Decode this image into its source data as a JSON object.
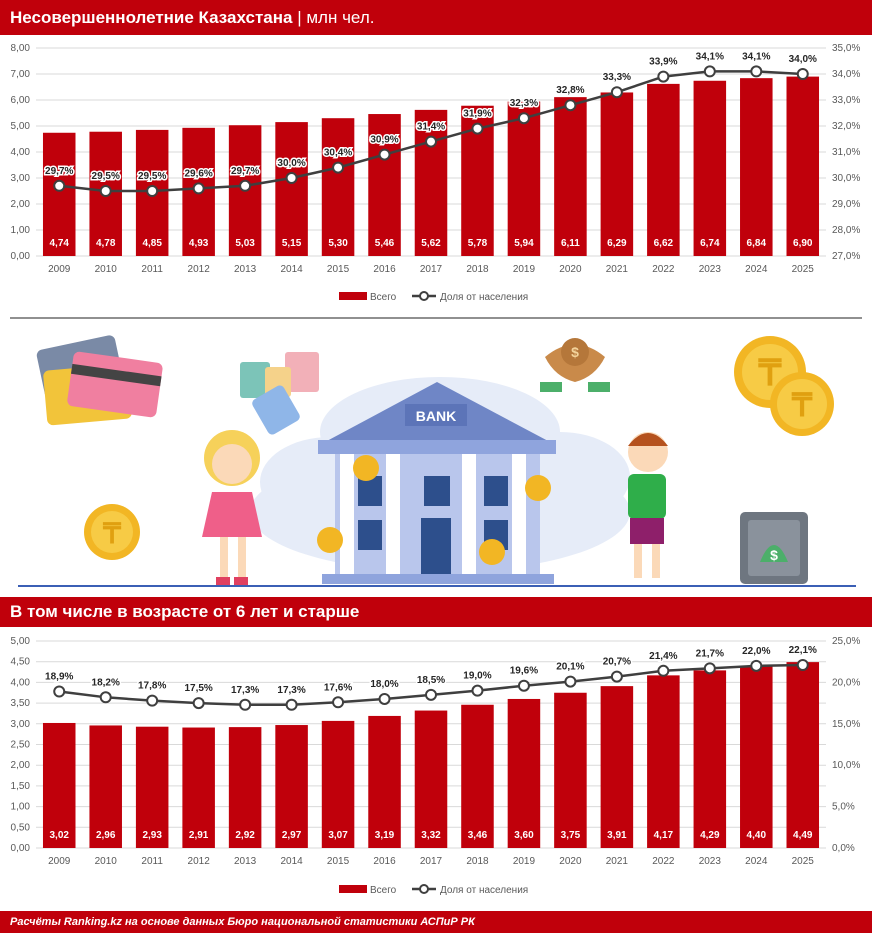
{
  "header": {
    "title_bold": "Несовершеннолетние Казахстана",
    "title_sep": " | ",
    "title_unit": "млн чел."
  },
  "subheader": {
    "title": "В том числе в возрасте от 6 лет и старше"
  },
  "footer": {
    "source": "Расчёты Ranking.kz на основе данных Бюро национальной статистики АСПиР РК"
  },
  "illustration": {
    "bank_label": "BANK"
  },
  "colors": {
    "bar": "#c0000b",
    "line": "#3f3f3f",
    "banner": "#c0000b"
  },
  "chart_data": [
    {
      "type": "bar",
      "categories": [
        "2009",
        "2010",
        "2011",
        "2012",
        "2013",
        "2014",
        "2015",
        "2016",
        "2017",
        "2018",
        "2019",
        "2020",
        "2021",
        "2022",
        "2023",
        "2024",
        "2025"
      ],
      "series": [
        {
          "name": "Всего",
          "type": "bar",
          "axis": "left",
          "values": [
            4.74,
            4.78,
            4.85,
            4.93,
            5.03,
            5.15,
            5.3,
            5.46,
            5.62,
            5.78,
            5.94,
            6.11,
            6.29,
            6.62,
            6.74,
            6.84,
            6.9
          ],
          "labels": [
            "4,74",
            "4,78",
            "4,85",
            "4,93",
            "5,03",
            "5,15",
            "5,30",
            "5,46",
            "5,62",
            "5,78",
            "5,94",
            "6,11",
            "6,29",
            "6,62",
            "6,74",
            "6,84",
            "6,90"
          ]
        },
        {
          "name": "Доля от населения",
          "type": "line",
          "axis": "right",
          "values": [
            29.7,
            29.5,
            29.5,
            29.6,
            29.7,
            30.0,
            30.4,
            30.9,
            31.4,
            31.9,
            32.3,
            32.8,
            33.3,
            33.9,
            34.1,
            34.1,
            34.0
          ],
          "labels": [
            "29,7%",
            "29,5%",
            "29,5%",
            "29,6%",
            "29,7%",
            "30,0%",
            "30,4%",
            "30,9%",
            "31,4%",
            "31,9%",
            "32,3%",
            "32,8%",
            "33,3%",
            "33,9%",
            "34,1%",
            "34,1%",
            "34,0%"
          ]
        }
      ],
      "y_left": {
        "min": 0,
        "max": 8,
        "ticks": [
          "0,00",
          "1,00",
          "2,00",
          "3,00",
          "4,00",
          "5,00",
          "6,00",
          "7,00",
          "8,00"
        ]
      },
      "y_right": {
        "min": 27,
        "max": 35,
        "ticks": [
          "27,0%",
          "28,0%",
          "29,0%",
          "30,0%",
          "31,0%",
          "32,0%",
          "33,0%",
          "34,0%",
          "35,0%"
        ]
      },
      "grid": true,
      "legend_position": "bottom"
    },
    {
      "type": "bar",
      "categories": [
        "2009",
        "2010",
        "2011",
        "2012",
        "2013",
        "2014",
        "2015",
        "2016",
        "2017",
        "2018",
        "2019",
        "2020",
        "2021",
        "2022",
        "2023",
        "2024",
        "2025"
      ],
      "series": [
        {
          "name": "Всего",
          "type": "bar",
          "axis": "left",
          "values": [
            3.02,
            2.96,
            2.93,
            2.91,
            2.92,
            2.97,
            3.07,
            3.19,
            3.32,
            3.46,
            3.6,
            3.75,
            3.91,
            4.17,
            4.29,
            4.4,
            4.49
          ],
          "labels": [
            "3,02",
            "2,96",
            "2,93",
            "2,91",
            "2,92",
            "2,97",
            "3,07",
            "3,19",
            "3,32",
            "3,46",
            "3,60",
            "3,75",
            "3,91",
            "4,17",
            "4,29",
            "4,40",
            "4,49"
          ]
        },
        {
          "name": "Доля от населения",
          "type": "line",
          "axis": "right",
          "values": [
            18.9,
            18.2,
            17.8,
            17.5,
            17.3,
            17.3,
            17.6,
            18.0,
            18.5,
            19.0,
            19.6,
            20.1,
            20.7,
            21.4,
            21.7,
            22.0,
            22.1
          ],
          "labels": [
            "18,9%",
            "18,2%",
            "17,8%",
            "17,5%",
            "17,3%",
            "17,3%",
            "17,6%",
            "18,0%",
            "18,5%",
            "19,0%",
            "19,6%",
            "20,1%",
            "20,7%",
            "21,4%",
            "21,7%",
            "22,0%",
            "22,1%"
          ]
        }
      ],
      "y_left": {
        "min": 0,
        "max": 5,
        "ticks": [
          "0,00",
          "0,50",
          "1,00",
          "1,50",
          "2,00",
          "2,50",
          "3,00",
          "3,50",
          "4,00",
          "4,50",
          "5,00"
        ]
      },
      "y_right": {
        "min": 0,
        "max": 25,
        "ticks": [
          "0,0%",
          "5,0%",
          "10,0%",
          "15,0%",
          "20,0%",
          "25,0%"
        ]
      },
      "grid": true,
      "legend_position": "bottom"
    }
  ]
}
